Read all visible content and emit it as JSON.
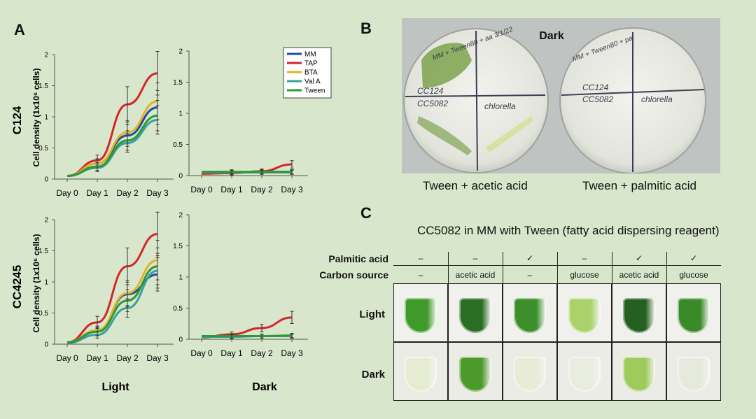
{
  "panels": {
    "a": "A",
    "b": "B",
    "c": "C"
  },
  "colors": {
    "MM": "#1f4e9c",
    "TAP": "#d3262a",
    "BTA": "#e6b12a",
    "ValA": "#3aa0a0",
    "Tween": "#2e9a35"
  },
  "chart_data": [
    {
      "type": "line",
      "row_label": "C124",
      "condition": "Light",
      "ylabel": "Cell density (1x10⁶ cells)",
      "categories": [
        "Day 0",
        "Day 1",
        "Day 2",
        "Day 3"
      ],
      "ylim": [
        0,
        2
      ],
      "yticks": [
        "0",
        "0.5",
        "1",
        "1.5",
        "2"
      ],
      "series": [
        {
          "name": "MM",
          "values": [
            0.05,
            0.25,
            0.7,
            1.15
          ]
        },
        {
          "name": "TAP",
          "values": [
            0.05,
            0.3,
            1.2,
            1.7
          ]
        },
        {
          "name": "BTA",
          "values": [
            0.05,
            0.25,
            0.75,
            1.25
          ]
        },
        {
          "name": "Val A",
          "values": [
            0.05,
            0.18,
            0.58,
            0.95
          ]
        },
        {
          "name": "Tween",
          "values": [
            0.05,
            0.2,
            0.62,
            1.02
          ]
        }
      ]
    },
    {
      "type": "line",
      "row_label": "C124",
      "condition": "Dark",
      "ylabel": "",
      "categories": [
        "Day 0",
        "Day 1",
        "Day 2",
        "Day 3"
      ],
      "ylim": [
        0,
        2
      ],
      "yticks": [
        "0",
        "0.5",
        "1",
        "1.5",
        "2"
      ],
      "legend": [
        "MM",
        "TAP",
        "BTA",
        "Val A",
        "Tween"
      ],
      "series": [
        {
          "name": "MM",
          "values": [
            0.05,
            0.05,
            0.06,
            0.06
          ]
        },
        {
          "name": "TAP",
          "values": [
            0.03,
            0.04,
            0.07,
            0.18
          ]
        },
        {
          "name": "BTA",
          "values": [
            0.05,
            0.05,
            0.06,
            0.06
          ]
        },
        {
          "name": "Val A",
          "values": [
            0.05,
            0.05,
            0.05,
            0.05
          ]
        },
        {
          "name": "Tween",
          "values": [
            0.06,
            0.06,
            0.06,
            0.06
          ]
        }
      ]
    },
    {
      "type": "line",
      "row_label": "CC4245",
      "condition": "Light",
      "ylabel": "Cell density (1x10⁶ cells)",
      "categories": [
        "Day 0",
        "Day 1",
        "Day 2",
        "Day 3"
      ],
      "ylim": [
        0,
        2
      ],
      "yticks": [
        "0",
        "0.5",
        "1",
        "1.5",
        "2"
      ],
      "series": [
        {
          "name": "MM",
          "values": [
            0.02,
            0.22,
            0.8,
            1.12
          ]
        },
        {
          "name": "TAP",
          "values": [
            0.03,
            0.35,
            1.25,
            1.77
          ]
        },
        {
          "name": "BTA",
          "values": [
            0.03,
            0.22,
            0.82,
            1.35
          ]
        },
        {
          "name": "Val A",
          "values": [
            0.02,
            0.15,
            0.58,
            1.18
          ]
        },
        {
          "name": "Tween",
          "values": [
            0.03,
            0.2,
            0.7,
            1.25
          ]
        }
      ]
    },
    {
      "type": "line",
      "row_label": "CC4245",
      "condition": "Dark",
      "ylabel": "",
      "categories": [
        "Day 0",
        "Day 1",
        "Day 2",
        "Day 3"
      ],
      "ylim": [
        0,
        2
      ],
      "yticks": [
        "0",
        "0.5",
        "1",
        "1.5",
        "2"
      ],
      "series": [
        {
          "name": "MM",
          "values": [
            0.04,
            0.05,
            0.05,
            0.05
          ]
        },
        {
          "name": "TAP",
          "values": [
            0.03,
            0.08,
            0.18,
            0.35
          ]
        },
        {
          "name": "BTA",
          "values": [
            0.04,
            0.05,
            0.05,
            0.06
          ]
        },
        {
          "name": "Val A",
          "values": [
            0.04,
            0.04,
            0.05,
            0.05
          ]
        },
        {
          "name": "Tween",
          "values": [
            0.05,
            0.05,
            0.05,
            0.06
          ]
        }
      ]
    }
  ],
  "panel_a": {
    "row_labels": [
      "C124",
      "CC4245"
    ],
    "col_labels": [
      "Light",
      "Dark"
    ],
    "ylabel": "Cell density (1x10⁶ cells)"
  },
  "panel_b": {
    "dark_label": "Dark",
    "plate1": {
      "header": "MM + Tween80 + aa 3/1/22",
      "q1": "CC124",
      "q2": "CC5082",
      "q3": "chlorella",
      "caption": "Tween + acetic acid"
    },
    "plate2": {
      "header": "MM + Tween80 + pa",
      "q1": "CC124",
      "q2": "CC5082",
      "q3": "chlorella",
      "caption": "Tween + palmitic acid"
    }
  },
  "panel_c": {
    "title": "CC5082 in MM with Tween (fatty acid dispersing reagent)",
    "row1_label": "Palmitic acid",
    "row2_label": "Carbon source",
    "light_label": "Light",
    "dark_label": "Dark",
    "palmitic": [
      "–",
      "–",
      "✓",
      "–",
      "✓",
      "✓"
    ],
    "carbon": [
      "–",
      "acetic acid",
      "–",
      "glucose",
      "acetic acid",
      "glucose"
    ],
    "light_tubes": [
      "#3f9a2a",
      "#2a6e24",
      "#3d8f2c",
      "#a9d36a",
      "#24601f",
      "#3a8a2a"
    ],
    "dark_tubes": [
      "#e6ecd2",
      "#4c9a2c",
      "#e8ecd6",
      "#e9ede0",
      "#9fcb5c",
      "#e6eadc"
    ]
  }
}
